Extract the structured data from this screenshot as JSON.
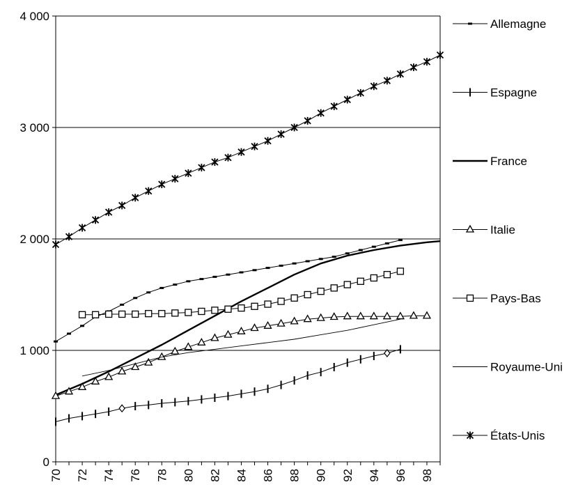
{
  "chart_data": {
    "type": "line",
    "title": "",
    "xlabel": "",
    "ylabel": "",
    "xlim": [
      70,
      99
    ],
    "ylim": [
      0,
      4000
    ],
    "y_ticks": [
      0,
      1000,
      2000,
      3000,
      4000
    ],
    "y_tick_labels": [
      "0",
      "1 000",
      "2 000",
      "3 000",
      "4 000"
    ],
    "x_ticks": [
      70,
      72,
      74,
      76,
      78,
      80,
      82,
      84,
      86,
      88,
      90,
      92,
      94,
      96,
      98
    ],
    "x_tick_labels": [
      "70",
      "72",
      "74",
      "76",
      "78",
      "80",
      "82",
      "84",
      "86",
      "88",
      "90",
      "92",
      "94",
      "96",
      "98"
    ],
    "grid": "horizontal",
    "legend_position": "right",
    "series": [
      {
        "name": "Allemagne",
        "marker": "dash",
        "x": [
          70,
          71,
          72,
          73,
          74,
          75,
          76,
          77,
          78,
          79,
          80,
          81,
          82,
          83,
          84,
          85,
          86,
          87,
          88,
          89,
          90,
          91,
          92,
          93,
          94,
          95,
          96
        ],
        "values": [
          1080,
          1150,
          1220,
          1300,
          1350,
          1410,
          1470,
          1520,
          1560,
          1590,
          1620,
          1640,
          1660,
          1680,
          1700,
          1720,
          1740,
          1760,
          1780,
          1800,
          1820,
          1840,
          1870,
          1900,
          1930,
          1960,
          1990
        ]
      },
      {
        "name": "Espagne",
        "marker": "vbar",
        "x": [
          70,
          71,
          72,
          73,
          74,
          75,
          76,
          77,
          78,
          79,
          80,
          81,
          82,
          83,
          84,
          85,
          86,
          87,
          88,
          89,
          90,
          91,
          92,
          93,
          94,
          95,
          96
        ],
        "values": [
          360,
          390,
          410,
          430,
          450,
          480,
          500,
          510,
          525,
          535,
          545,
          560,
          575,
          590,
          610,
          630,
          655,
          690,
          730,
          775,
          805,
          850,
          890,
          920,
          950,
          975,
          1010
        ],
        "special_markers": [
          {
            "x": 75,
            "y": 480,
            "marker": "diamond"
          },
          {
            "x": 95,
            "y": 975,
            "marker": "diamond"
          }
        ]
      },
      {
        "name": "France",
        "marker": "none",
        "style": "thick",
        "x": [
          70,
          72,
          74,
          76,
          78,
          80,
          82,
          84,
          86,
          88,
          90,
          92,
          94,
          96,
          98,
          99
        ],
        "values": [
          600,
          700,
          810,
          930,
          1050,
          1180,
          1310,
          1440,
          1560,
          1680,
          1780,
          1850,
          1900,
          1940,
          1970,
          1980
        ]
      },
      {
        "name": "Italie",
        "marker": "triangle",
        "x": [
          70,
          71,
          72,
          73,
          74,
          75,
          76,
          77,
          78,
          79,
          80,
          81,
          82,
          83,
          84,
          85,
          86,
          87,
          88,
          89,
          90,
          91,
          92,
          93,
          94,
          95,
          96,
          97,
          98
        ],
        "values": [
          590,
          630,
          670,
          720,
          760,
          810,
          850,
          890,
          940,
          990,
          1030,
          1070,
          1110,
          1140,
          1170,
          1200,
          1220,
          1240,
          1260,
          1280,
          1290,
          1300,
          1305,
          1305,
          1305,
          1305,
          1305,
          1310,
          1310
        ]
      },
      {
        "name": "Pays-Bas",
        "marker": "square",
        "x": [
          72,
          73,
          74,
          75,
          76,
          77,
          78,
          79,
          80,
          81,
          82,
          83,
          84,
          85,
          86,
          87,
          88,
          89,
          90,
          91,
          92,
          93,
          94,
          95,
          96
        ],
        "values": [
          1320,
          1320,
          1325,
          1325,
          1325,
          1330,
          1330,
          1335,
          1340,
          1350,
          1360,
          1370,
          1380,
          1395,
          1415,
          1440,
          1470,
          1500,
          1530,
          1560,
          1590,
          1620,
          1650,
          1680,
          1710
        ]
      },
      {
        "name": "Royaume-Uni",
        "marker": "none",
        "style": "thin",
        "x": [
          72,
          74,
          76,
          78,
          80,
          82,
          84,
          86,
          88,
          90,
          92,
          94,
          96
        ],
        "values": [
          770,
          820,
          880,
          940,
          980,
          1010,
          1040,
          1070,
          1100,
          1140,
          1180,
          1230,
          1280
        ]
      },
      {
        "name": "États-Unis",
        "marker": "asterisk",
        "x": [
          70,
          71,
          72,
          73,
          74,
          75,
          76,
          77,
          78,
          79,
          80,
          81,
          82,
          83,
          84,
          85,
          86,
          87,
          88,
          89,
          90,
          91,
          92,
          93,
          94,
          95,
          96,
          97,
          98,
          99
        ],
        "values": [
          1950,
          2020,
          2100,
          2170,
          2240,
          2300,
          2370,
          2430,
          2490,
          2540,
          2590,
          2640,
          2690,
          2730,
          2780,
          2830,
          2880,
          2940,
          3000,
          3060,
          3130,
          3190,
          3250,
          3310,
          3370,
          3420,
          3480,
          3540,
          3590,
          3650
        ]
      }
    ]
  }
}
